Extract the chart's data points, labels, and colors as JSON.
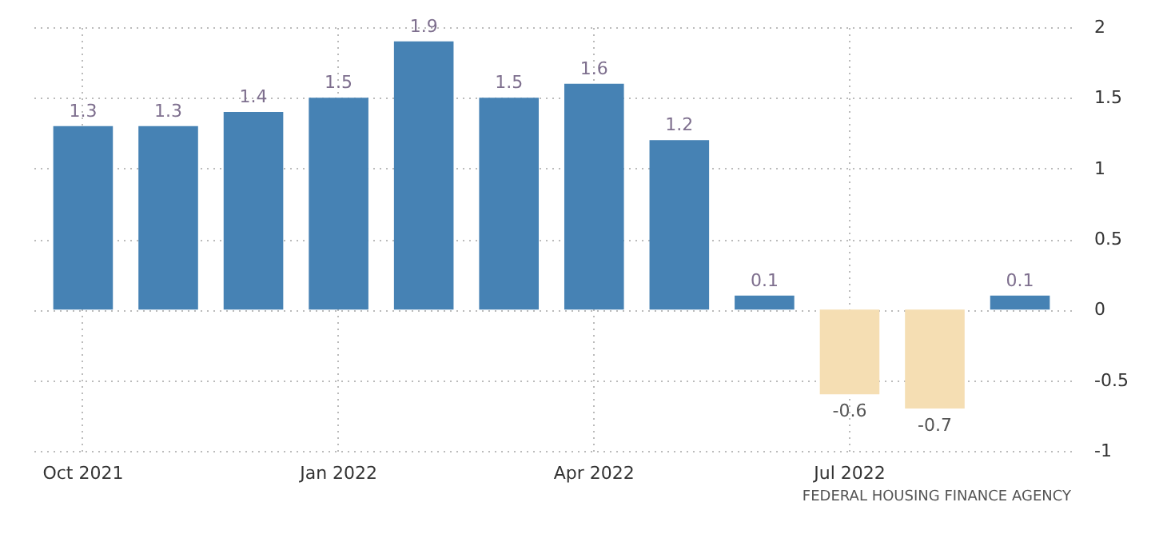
{
  "chart_data": {
    "type": "bar",
    "categories": [
      "Oct 2021",
      null,
      null,
      "Jan 2022",
      null,
      null,
      "Apr 2022",
      null,
      null,
      "Jul 2022",
      null,
      null
    ],
    "values": [
      1.3,
      1.3,
      1.4,
      1.5,
      1.9,
      1.5,
      1.6,
      1.2,
      0.1,
      -0.6,
      -0.7,
      0.1
    ],
    "colors": [
      "#4682b4",
      "#4682b4",
      "#4682b4",
      "#4682b4",
      "#4682b4",
      "#4682b4",
      "#4682b4",
      "#4682b4",
      "#4682b4",
      "#f5deb3",
      "#f5deb3",
      "#4682b4"
    ],
    "ylim": [
      -1,
      2
    ],
    "yticks": [
      -1,
      -0.5,
      0,
      0.5,
      1,
      1.5,
      2
    ],
    "grid": true,
    "data_labels": true,
    "annotations": [
      "FEDERAL HOUSING FINANCE AGENCY"
    ]
  }
}
